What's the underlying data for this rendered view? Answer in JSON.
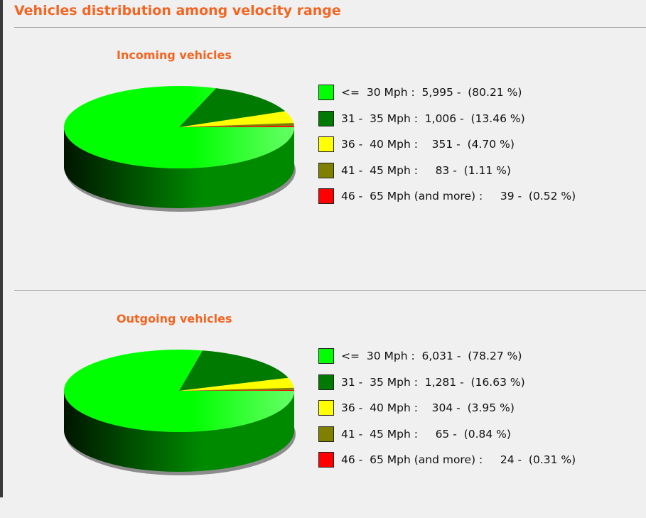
{
  "title": "Vehicles distribution among velocity range",
  "colors": {
    "accent": "#f26522",
    "range_1": "#00ff00",
    "range_2": "#007a00",
    "range_3": "#ffff00",
    "range_4": "#808000",
    "range_5": "#ff0000"
  },
  "chart_data": [
    {
      "type": "pie",
      "title": "Incoming vehicles",
      "legend_position": "right",
      "categories": [
        "<= 30 Mph",
        "31 - 35 Mph",
        "36 - 40 Mph",
        "41 - 45 Mph",
        "46 - 65 Mph (and more)"
      ],
      "values": [
        5995,
        1006,
        351,
        83,
        39
      ],
      "percents": [
        80.21,
        13.46,
        4.7,
        1.11,
        0.52
      ],
      "legend": [
        "<=  30 Mph :  5,995 -  (80.21 %)",
        "31 -  35 Mph :  1,006 -  (13.46 %)",
        "36 -  40 Mph :    351 -  (4.70 %)",
        "41 -  45 Mph :     83 -  (1.11 %)",
        "46 -  65 Mph (and more) :     39 -  (0.52 %)"
      ]
    },
    {
      "type": "pie",
      "title": "Outgoing vehicles",
      "legend_position": "right",
      "categories": [
        "<= 30 Mph",
        "31 - 35 Mph",
        "36 - 40 Mph",
        "41 - 45 Mph",
        "46 - 65 Mph (and more)"
      ],
      "values": [
        6031,
        1281,
        304,
        65,
        24
      ],
      "percents": [
        78.27,
        16.63,
        3.95,
        0.84,
        0.31
      ],
      "legend": [
        "<=  30 Mph :  6,031 -  (78.27 %)",
        "31 -  35 Mph :  1,281 -  (16.63 %)",
        "36 -  40 Mph :    304 -  (3.95 %)",
        "41 -  45 Mph :     65 -  (0.84 %)",
        "46 -  65 Mph (and more) :     24 -  (0.31 %)"
      ]
    }
  ]
}
